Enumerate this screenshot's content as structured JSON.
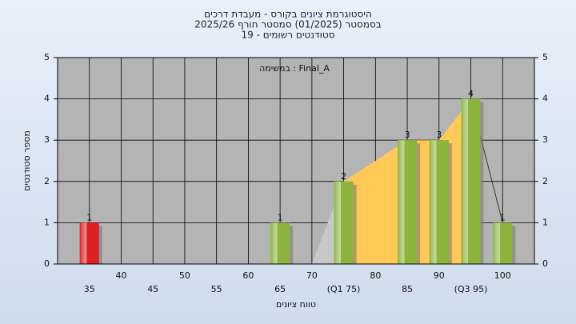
{
  "chart_data": {
    "type": "bar",
    "title": "היסטוגרמת ציונים בקורס - מעבדת דרכים",
    "subtitle": "בסמסטר  (01/2025)  סמסטר חורף 2025/26",
    "subtitle2": "סטודנטים רשומים - 19",
    "annotation": "במשימה : Final_A",
    "y_label": "מספר סטודנטים",
    "x_label": "טווח ציונים",
    "categories": [
      "35",
      "40",
      "45",
      "50",
      "55",
      "60",
      "65",
      "70",
      "(Q1 75)",
      "80",
      "85",
      "90",
      "(Q3 95)",
      "100"
    ],
    "values": [
      1,
      0,
      0,
      0,
      0,
      0,
      1,
      0,
      2,
      0,
      3,
      3,
      4,
      1
    ],
    "colors": [
      "#dd2020",
      "#8cb43c",
      "#8cb43c",
      "#8cb43c",
      "#8cb43c",
      "#8cb43c",
      "#8cb43c",
      "#8cb43c",
      "#8cb43c",
      "#8cb43c",
      "#8cb43c",
      "#8cb43c",
      "#8cb43c",
      "#8cb43c"
    ],
    "area_color": "#ffc857",
    "ylim": [
      0,
      5
    ],
    "yticks": [
      0,
      1,
      2,
      3,
      4,
      5
    ],
    "grid": true
  }
}
